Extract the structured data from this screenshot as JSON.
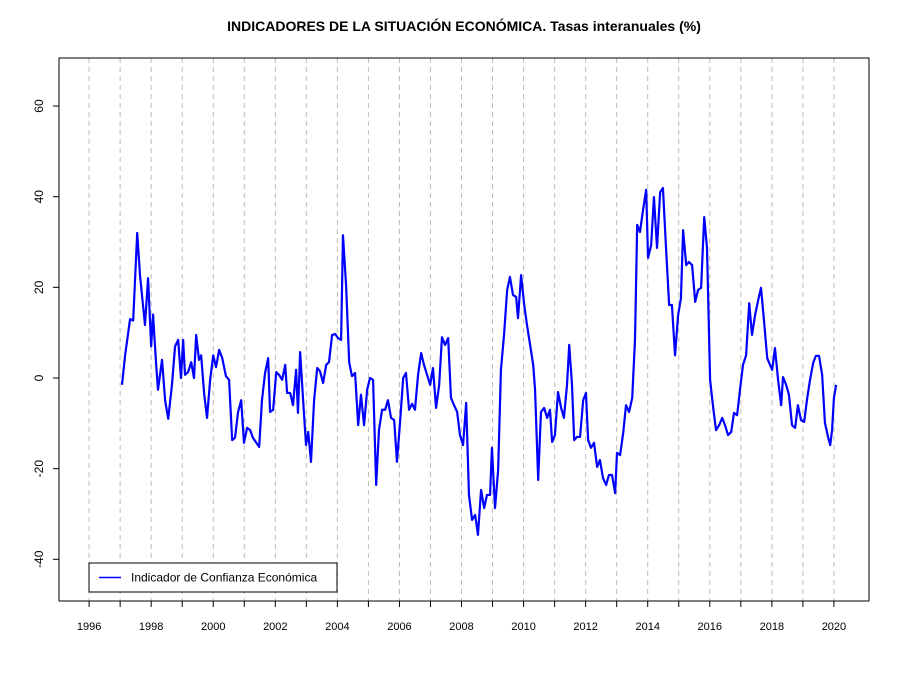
{
  "chart_data": {
    "type": "line",
    "title": "INDICADORES DE LA SITUACIÓN ECONÓMICA. Tasas interanuales (%)",
    "x": [
      1997.06,
      1997.16,
      1997.32,
      1997.42,
      1997.55,
      1997.64,
      1997.8,
      1997.9,
      1998.0,
      1998.06,
      1998.16,
      1998.22,
      1998.35,
      1998.45,
      1998.55,
      1998.67,
      1998.77,
      1998.87,
      1998.96,
      1999.03,
      1999.09,
      1999.19,
      1999.29,
      1999.38,
      1999.45,
      1999.54,
      1999.61,
      1999.71,
      1999.8,
      1999.9,
      2000.0,
      2000.09,
      2000.19,
      2000.29,
      2000.41,
      2000.51,
      2000.61,
      2000.7,
      2000.8,
      2000.9,
      2000.99,
      2001.09,
      2001.19,
      2001.28,
      2001.48,
      2001.57,
      2001.67,
      2001.77,
      2001.83,
      2001.93,
      2002.03,
      2002.12,
      2002.22,
      2002.32,
      2002.38,
      2002.48,
      2002.57,
      2002.67,
      2002.73,
      2002.8,
      2002.9,
      2002.99,
      2003.06,
      2003.15,
      2003.25,
      2003.35,
      2003.44,
      2003.54,
      2003.64,
      2003.73,
      2003.83,
      2003.93,
      2004.02,
      2004.12,
      2004.18,
      2004.28,
      2004.38,
      2004.47,
      2004.57,
      2004.67,
      2004.76,
      2004.86,
      2004.96,
      2005.05,
      2005.15,
      2005.25,
      2005.34,
      2005.44,
      2005.54,
      2005.63,
      2005.73,
      2005.83,
      2005.92,
      2006.02,
      2006.12,
      2006.21,
      2006.31,
      2006.41,
      2006.5,
      2006.6,
      2006.7,
      2006.79,
      2006.89,
      2006.99,
      2007.08,
      2007.18,
      2007.28,
      2007.37,
      2007.47,
      2007.57,
      2007.66,
      2007.76,
      2007.86,
      2007.95,
      2008.05,
      2008.15,
      2008.24,
      2008.34,
      2008.44,
      2008.53,
      2008.63,
      2008.73,
      2008.82,
      2008.92,
      2008.98,
      2009.08,
      2009.18,
      2009.27,
      2009.37,
      2009.47,
      2009.56,
      2009.66,
      2009.76,
      2009.82,
      2009.92,
      2010.02,
      2010.11,
      2010.21,
      2010.31,
      2010.37,
      2010.47,
      2010.56,
      2010.66,
      2010.76,
      2010.85,
      2010.92,
      2011.01,
      2011.11,
      2011.21,
      2011.3,
      2011.4,
      2011.47,
      2011.56,
      2011.63,
      2011.72,
      2011.82,
      2011.92,
      2012.01,
      2012.08,
      2012.17,
      2012.27,
      2012.37,
      2012.46,
      2012.56,
      2012.66,
      2012.75,
      2012.85,
      2012.95,
      2013.01,
      2013.11,
      2013.21,
      2013.3,
      2013.4,
      2013.5,
      2013.59,
      2013.66,
      2013.75,
      2013.85,
      2013.95,
      2014.01,
      2014.11,
      2014.2,
      2014.3,
      2014.4,
      2014.49,
      2014.59,
      2014.69,
      2014.78,
      2014.88,
      2014.98,
      2015.07,
      2015.14,
      2015.24,
      2015.33,
      2015.43,
      2015.53,
      2015.62,
      2015.72,
      2015.82,
      2015.91,
      2016.01,
      2016.11,
      2016.2,
      2016.3,
      2016.4,
      2016.49,
      2016.59,
      2016.69,
      2016.78,
      2016.88,
      2016.98,
      2017.07,
      2017.17,
      2017.27,
      2017.36,
      2017.46,
      2017.56,
      2017.65,
      2017.75,
      2017.85,
      2017.94,
      2018.01,
      2018.1,
      2018.2,
      2018.3,
      2018.36,
      2018.46,
      2018.55,
      2018.65,
      2018.75,
      2018.84,
      2018.94,
      2019.04,
      2019.13,
      2019.23,
      2019.33,
      2019.42,
      2019.52,
      2019.62,
      2019.71,
      2019.81,
      2019.88,
      2019.94,
      2020.0,
      2020.07
    ],
    "series": [
      {
        "name": "Indicador de Confianza Económica",
        "color": "#0000ff",
        "values": [
          -1.5,
          5,
          13,
          12.7,
          32,
          22.7,
          11.7,
          22,
          7,
          14,
          3,
          -2.6,
          4,
          -5,
          -9,
          -1.5,
          7,
          8.4,
          0,
          8.4,
          0.7,
          1.3,
          3.5,
          0,
          9.5,
          4,
          5,
          -3.7,
          -8.8,
          -0.4,
          5,
          2.4,
          6.2,
          4.4,
          0.4,
          -0.4,
          -13.7,
          -13.2,
          -7.5,
          -4.9,
          -14.3,
          -11,
          -11.5,
          -13.2,
          -15.2,
          -4.9,
          1.1,
          4.4,
          -7.5,
          -7,
          1.3,
          0.7,
          -0.4,
          2.9,
          -3.3,
          -3.3,
          -6,
          1.8,
          -7.7,
          5.7,
          -5.3,
          -14.8,
          -11.9,
          -18.5,
          -4.9,
          2.2,
          1.5,
          -1.1,
          2.9,
          3.5,
          9.5,
          9.7,
          8.8,
          8.4,
          31.5,
          20.5,
          3.5,
          0.4,
          1.1,
          -10.4,
          -3.7,
          -10.4,
          -2.6,
          0,
          -0.4,
          -23.6,
          -11.5,
          -7,
          -7,
          -4.9,
          -8.8,
          -9.3,
          -18.5,
          -9.7,
          0,
          1.1,
          -7,
          -5.7,
          -7,
          0.7,
          5.5,
          2.9,
          0.7,
          -1.5,
          2.2,
          -6.6,
          -1.5,
          9,
          7.3,
          8.8,
          -4.4,
          -6,
          -7.5,
          -12.6,
          -14.8,
          -5.5,
          -25.8,
          -31.3,
          -30.2,
          -34.6,
          -24.7,
          -28.7,
          -25.8,
          -25.8,
          -15.4,
          -28.7,
          -20.3,
          1.8,
          9.5,
          19.4,
          22.3,
          18.3,
          17.9,
          13.2,
          22.7,
          16.1,
          11.7,
          7.3,
          2.9,
          -2.6,
          -22.5,
          -7.5,
          -6.6,
          -8.8,
          -7,
          -14.1,
          -12.6,
          -3.1,
          -6.6,
          -8.8,
          -1.5,
          7.3,
          -1.5,
          -13.7,
          -13,
          -13,
          -4.9,
          -3.3,
          -13.7,
          -15.4,
          -14.3,
          -19.6,
          -18.1,
          -22.1,
          -23.6,
          -21.4,
          -21.4,
          -25.4,
          -16.5,
          -17,
          -12.1,
          -6,
          -7.5,
          -4.4,
          8.4,
          33.8,
          32.2,
          37.1,
          41.5,
          26.5,
          29.3,
          39.9,
          28.7,
          41,
          41.9,
          28.7,
          16.1,
          16.1,
          5,
          13.9,
          17.6,
          32.6,
          24.9,
          25.6,
          24.9,
          16.8,
          19.4,
          19.9,
          35.5,
          28.7,
          -0.4,
          -6.6,
          -11.5,
          -10.4,
          -8.8,
          -10.4,
          -12.6,
          -11.9,
          -7.7,
          -8.2,
          -2.2,
          2.9,
          5,
          16.5,
          9.5,
          13.9,
          17.2,
          19.9,
          12.4,
          4.4,
          2.9,
          1.8,
          6.6,
          -0.4,
          -6,
          0.2,
          -1.5,
          -3.7,
          -10.4,
          -11,
          -6,
          -9.3,
          -9.7,
          -4.9,
          -0.4,
          3.3,
          4.9,
          4.9,
          0.7,
          -9.9,
          -13,
          -14.8,
          -11.5,
          -4.4,
          -1.5
        ]
      }
    ],
    "xlim": [
      1995.03,
      2021.13
    ],
    "xticks": [
      1996,
      1998,
      2000,
      2002,
      2004,
      2006,
      2008,
      2010,
      2012,
      2014,
      2016,
      2018,
      2020
    ],
    "minor_xticks": [
      1997,
      1999,
      2001,
      2003,
      2005,
      2007,
      2009,
      2011,
      2013,
      2015,
      2017,
      2019
    ],
    "ylim": [
      -49.2,
      70.6
    ],
    "yticks": [
      -40,
      -20,
      0,
      20,
      40,
      60
    ],
    "grid": "x",
    "legend": "bottom-left"
  }
}
